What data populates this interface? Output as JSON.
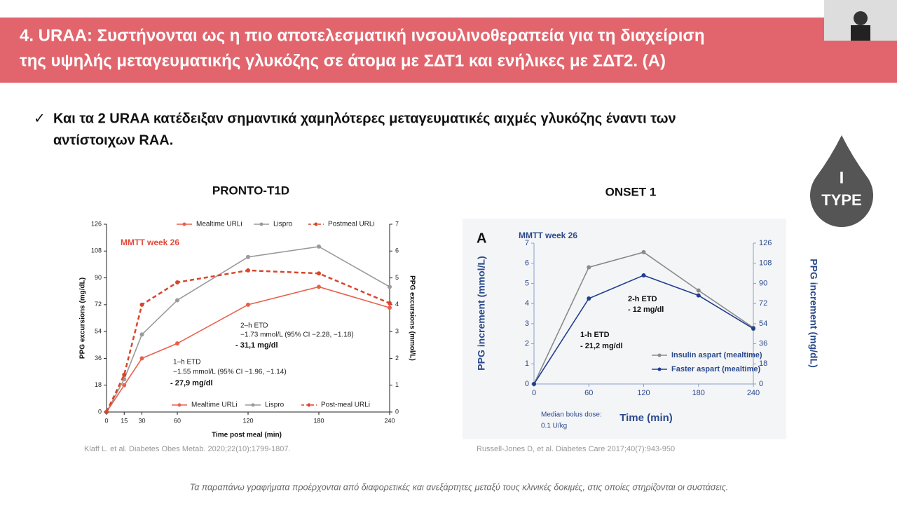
{
  "header": {
    "title_lines": [
      "4. URAA: Συστήνονται ως η πιο αποτελεσματική ινσουλινοθεραπεία για τη  διαχείριση",
      "της υψηλής μεταγευματικής γλυκόζης σε άτομα με ΣΔΤ1 και ενήλικες με ΣΔΤ2. (A)"
    ]
  },
  "bullet_lines": [
    "Και τα 2 URAA κατέδειξαν σημαντικά χαμηλότερες μεταγευματικές αιχμές γλυκόζης έναντι των",
    "αντίστοιχων RAA."
  ],
  "logo": {
    "top": "I",
    "bottom": "TYPE"
  },
  "citations": [
    "Klaff L. et al. Diabetes Obes Metab. 2020;22(10):1799-1807.",
    "Russell-Jones D, et al. Diabetes Care 2017;40(7):943-950"
  ],
  "footnote": "Τα παραπάνω γραφήματα προέρχονται από διαφορετικές και ανεξάρτητες μεταξύ τους κλινικές δοκιμές, στις οποίες στηρίζονται οι συστάσεις.",
  "chart_data": [
    {
      "type": "line",
      "title": "PRONTO-T1D",
      "xlabel": "Time post meal (min)",
      "ylabel": "PPG excursions (mg/dL)",
      "y2label": "PPG excursions (mmol/L)",
      "x": [
        0,
        15,
        30,
        60,
        120,
        180,
        240
      ],
      "xlim": [
        0,
        240
      ],
      "xticks": [
        0,
        15,
        30,
        60,
        120,
        180,
        240
      ],
      "ylim": [
        0,
        126
      ],
      "yticks": [
        0,
        18,
        36,
        54,
        72,
        90,
        108,
        126
      ],
      "y2lim": [
        0,
        7
      ],
      "y2ticks": [
        0,
        1,
        2,
        3,
        4,
        5,
        6,
        7
      ],
      "legend": "top",
      "lower_legend": [
        "Mealtime URLi",
        "Lispro",
        "Post-meal URLi"
      ],
      "series": [
        {
          "name": "Mealtime URLi",
          "color": "#e8604c",
          "line_style": "solid",
          "values": [
            0,
            18,
            36,
            46,
            72,
            84,
            70
          ]
        },
        {
          "name": "Lispro",
          "color": "#9a9a9a",
          "line_style": "solid",
          "values": [
            0,
            22,
            52,
            75,
            104,
            111,
            84
          ]
        },
        {
          "name": "Postmeal URLi",
          "color": "#d9452b",
          "line_style": "dashed",
          "values": [
            0,
            25,
            72,
            87,
            95,
            93,
            73
          ]
        }
      ],
      "annotations": [
        "MMTT week 26",
        "2–h ETD",
        "−1.73 mmol/L (95% CI −2.28, −1.18)",
        "- 31,1 mg/dl",
        "1–h ETD",
        "−1.55 mmol/L (95% CI −1.96, −1.14)",
        "- 27,9 mg/dl"
      ]
    },
    {
      "type": "line",
      "title": "ONSET 1",
      "xlabel": "Time (min)",
      "ylabel": "PPG increment (mmol/L)",
      "y2label": "PPG increment (mg/dL)",
      "x": [
        0,
        60,
        120,
        180,
        240
      ],
      "xlim": [
        0,
        240
      ],
      "xticks": [
        0,
        60,
        120,
        180,
        240
      ],
      "ylim": [
        0,
        7
      ],
      "yticks": [
        0,
        1,
        2,
        3,
        4,
        5,
        6,
        7
      ],
      "y2lim": [
        0,
        126
      ],
      "y2ticks": [
        0,
        18,
        36,
        54,
        72,
        90,
        108,
        126
      ],
      "legend": "lower right",
      "series": [
        {
          "name": "Insulin aspart (mealtime)",
          "color": "#8a8a8a",
          "line_style": "solid",
          "values": [
            0,
            5.8,
            6.55,
            4.65,
            2.8
          ]
        },
        {
          "name": "Faster aspart (mealtime)",
          "color": "#1f3f8f",
          "line_style": "solid",
          "values": [
            0,
            4.25,
            5.4,
            4.4,
            2.75
          ]
        }
      ],
      "annotations": [
        "A",
        "MMTT week 26",
        "2-h ETD",
        "- 12 mg/dl",
        "1-h ETD",
        "- 21,2 mg/dl",
        "Median bolus dose:",
        "0.1 U/kg"
      ]
    }
  ]
}
